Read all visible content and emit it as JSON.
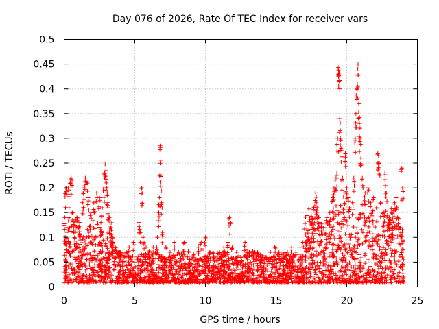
{
  "chart_data": {
    "type": "scatter",
    "title": "Day 076 of 2026, Rate Of TEC Index for receiver vars",
    "xlabel": "GPS time / hours",
    "ylabel": "ROTI / TECUs",
    "xlim": [
      0,
      25
    ],
    "ylim": [
      0,
      0.5
    ],
    "x_ticks": [
      0,
      5,
      10,
      15,
      20,
      25
    ],
    "x_tick_labels": [
      "0",
      "5",
      "10",
      "15",
      "20",
      "25"
    ],
    "y_ticks": [
      0,
      0.05,
      0.1,
      0.15,
      0.2,
      0.25,
      0.3,
      0.35,
      0.4,
      0.45,
      0.5
    ],
    "y_tick_labels": [
      "0",
      "0.05",
      "0.1",
      "0.15",
      "0.2",
      "0.25",
      "0.3",
      "0.35",
      "0.4",
      "0.45",
      "0.5"
    ],
    "grid": true,
    "marker": "+",
    "marker_color": "#ff0000",
    "series": [
      {
        "name": "ROTI",
        "points": [
          [
            0.05,
            0.14
          ],
          [
            0.1,
            0.19
          ],
          [
            0.15,
            0.2
          ],
          [
            0.2,
            0.12
          ],
          [
            0.3,
            0.2
          ],
          [
            0.35,
            0.16
          ],
          [
            0.45,
            0.21
          ],
          [
            0.5,
            0.22
          ],
          [
            0.6,
            0.15
          ],
          [
            0.7,
            0.11
          ],
          [
            0.9,
            0.14
          ],
          [
            1.1,
            0.13
          ],
          [
            1.3,
            0.17
          ],
          [
            1.4,
            0.2
          ],
          [
            1.5,
            0.22
          ],
          [
            1.6,
            0.21
          ],
          [
            1.7,
            0.18
          ],
          [
            1.9,
            0.15
          ],
          [
            2.1,
            0.17
          ],
          [
            2.3,
            0.19
          ],
          [
            2.5,
            0.18
          ],
          [
            2.6,
            0.13
          ],
          [
            2.7,
            0.16
          ],
          [
            2.8,
            0.2
          ],
          [
            2.85,
            0.23
          ],
          [
            2.9,
            0.248
          ],
          [
            2.95,
            0.235
          ],
          [
            3.0,
            0.21
          ],
          [
            3.05,
            0.19
          ],
          [
            3.1,
            0.16
          ],
          [
            3.2,
            0.14
          ],
          [
            3.3,
            0.12
          ],
          [
            3.4,
            0.1
          ],
          [
            3.6,
            0.08
          ],
          [
            3.8,
            0.07
          ],
          [
            4.0,
            0.07
          ],
          [
            4.2,
            0.06
          ],
          [
            4.4,
            0.07
          ],
          [
            4.6,
            0.08
          ],
          [
            4.9,
            0.09
          ],
          [
            5.3,
            0.13
          ],
          [
            5.4,
            0.11
          ],
          [
            5.5,
            0.2
          ],
          [
            5.55,
            0.19
          ],
          [
            5.6,
            0.1
          ],
          [
            5.8,
            0.08
          ],
          [
            6.0,
            0.07
          ],
          [
            6.3,
            0.08
          ],
          [
            6.6,
            0.1
          ],
          [
            6.7,
            0.15
          ],
          [
            6.75,
            0.18
          ],
          [
            6.8,
            0.285
          ],
          [
            6.82,
            0.252
          ],
          [
            6.85,
            0.223
          ],
          [
            6.9,
            0.17
          ],
          [
            6.95,
            0.11
          ],
          [
            7.2,
            0.08
          ],
          [
            7.5,
            0.07
          ],
          [
            7.8,
            0.09
          ],
          [
            8.1,
            0.07
          ],
          [
            8.5,
            0.09
          ],
          [
            8.8,
            0.07
          ],
          [
            9.1,
            0.06
          ],
          [
            9.5,
            0.08
          ],
          [
            9.7,
            0.09
          ],
          [
            10.0,
            0.1
          ],
          [
            10.3,
            0.07
          ],
          [
            10.6,
            0.06
          ],
          [
            11.0,
            0.07
          ],
          [
            11.3,
            0.08
          ],
          [
            11.6,
            0.09
          ],
          [
            11.7,
            0.14
          ],
          [
            11.75,
            0.13
          ],
          [
            11.9,
            0.08
          ],
          [
            12.2,
            0.07
          ],
          [
            12.5,
            0.06
          ],
          [
            12.8,
            0.09
          ],
          [
            13.1,
            0.07
          ],
          [
            13.4,
            0.06
          ],
          [
            13.7,
            0.07
          ],
          [
            14.0,
            0.06
          ],
          [
            14.3,
            0.06
          ],
          [
            14.6,
            0.07
          ],
          [
            14.9,
            0.08
          ],
          [
            15.2,
            0.07
          ],
          [
            15.5,
            0.06
          ],
          [
            15.8,
            0.07
          ],
          [
            16.1,
            0.08
          ],
          [
            16.4,
            0.07
          ],
          [
            16.7,
            0.08
          ],
          [
            16.9,
            0.09
          ],
          [
            17.1,
            0.09
          ],
          [
            17.4,
            0.08
          ],
          [
            17.6,
            0.12
          ],
          [
            17.8,
            0.19
          ],
          [
            17.85,
            0.17
          ],
          [
            17.9,
            0.16
          ],
          [
            18.1,
            0.13
          ],
          [
            18.4,
            0.12
          ],
          [
            18.6,
            0.14
          ],
          [
            18.8,
            0.15
          ],
          [
            19.0,
            0.18
          ],
          [
            19.1,
            0.2
          ],
          [
            19.2,
            0.22
          ],
          [
            19.3,
            0.23
          ],
          [
            19.35,
            0.3
          ],
          [
            19.4,
            0.443
          ],
          [
            19.42,
            0.438
          ],
          [
            19.45,
            0.427
          ],
          [
            19.5,
            0.34
          ],
          [
            19.55,
            0.3
          ],
          [
            19.6,
            0.28
          ],
          [
            19.7,
            0.22
          ],
          [
            19.8,
            0.19
          ],
          [
            19.9,
            0.27
          ],
          [
            20.0,
            0.2
          ],
          [
            20.1,
            0.18
          ],
          [
            20.2,
            0.16
          ],
          [
            20.4,
            0.17
          ],
          [
            20.5,
            0.22
          ],
          [
            20.6,
            0.3
          ],
          [
            20.65,
            0.35
          ],
          [
            20.7,
            0.4
          ],
          [
            20.75,
            0.41
          ],
          [
            20.8,
            0.45
          ],
          [
            20.85,
            0.37
          ],
          [
            20.9,
            0.33
          ],
          [
            20.95,
            0.3
          ],
          [
            21.0,
            0.26
          ],
          [
            21.1,
            0.22
          ],
          [
            21.3,
            0.19
          ],
          [
            21.5,
            0.2
          ],
          [
            21.7,
            0.17
          ],
          [
            21.9,
            0.18
          ],
          [
            22.1,
            0.16
          ],
          [
            22.2,
            0.27
          ],
          [
            22.25,
            0.265
          ],
          [
            22.3,
            0.25
          ],
          [
            22.4,
            0.17
          ],
          [
            22.6,
            0.15
          ],
          [
            22.7,
            0.23
          ],
          [
            22.8,
            0.19
          ],
          [
            23.0,
            0.14
          ],
          [
            23.2,
            0.13
          ],
          [
            23.4,
            0.17
          ],
          [
            23.5,
            0.18
          ],
          [
            23.6,
            0.14
          ],
          [
            23.8,
            0.12
          ],
          [
            23.9,
            0.24
          ],
          [
            23.95,
            0.2
          ]
        ]
      }
    ]
  }
}
